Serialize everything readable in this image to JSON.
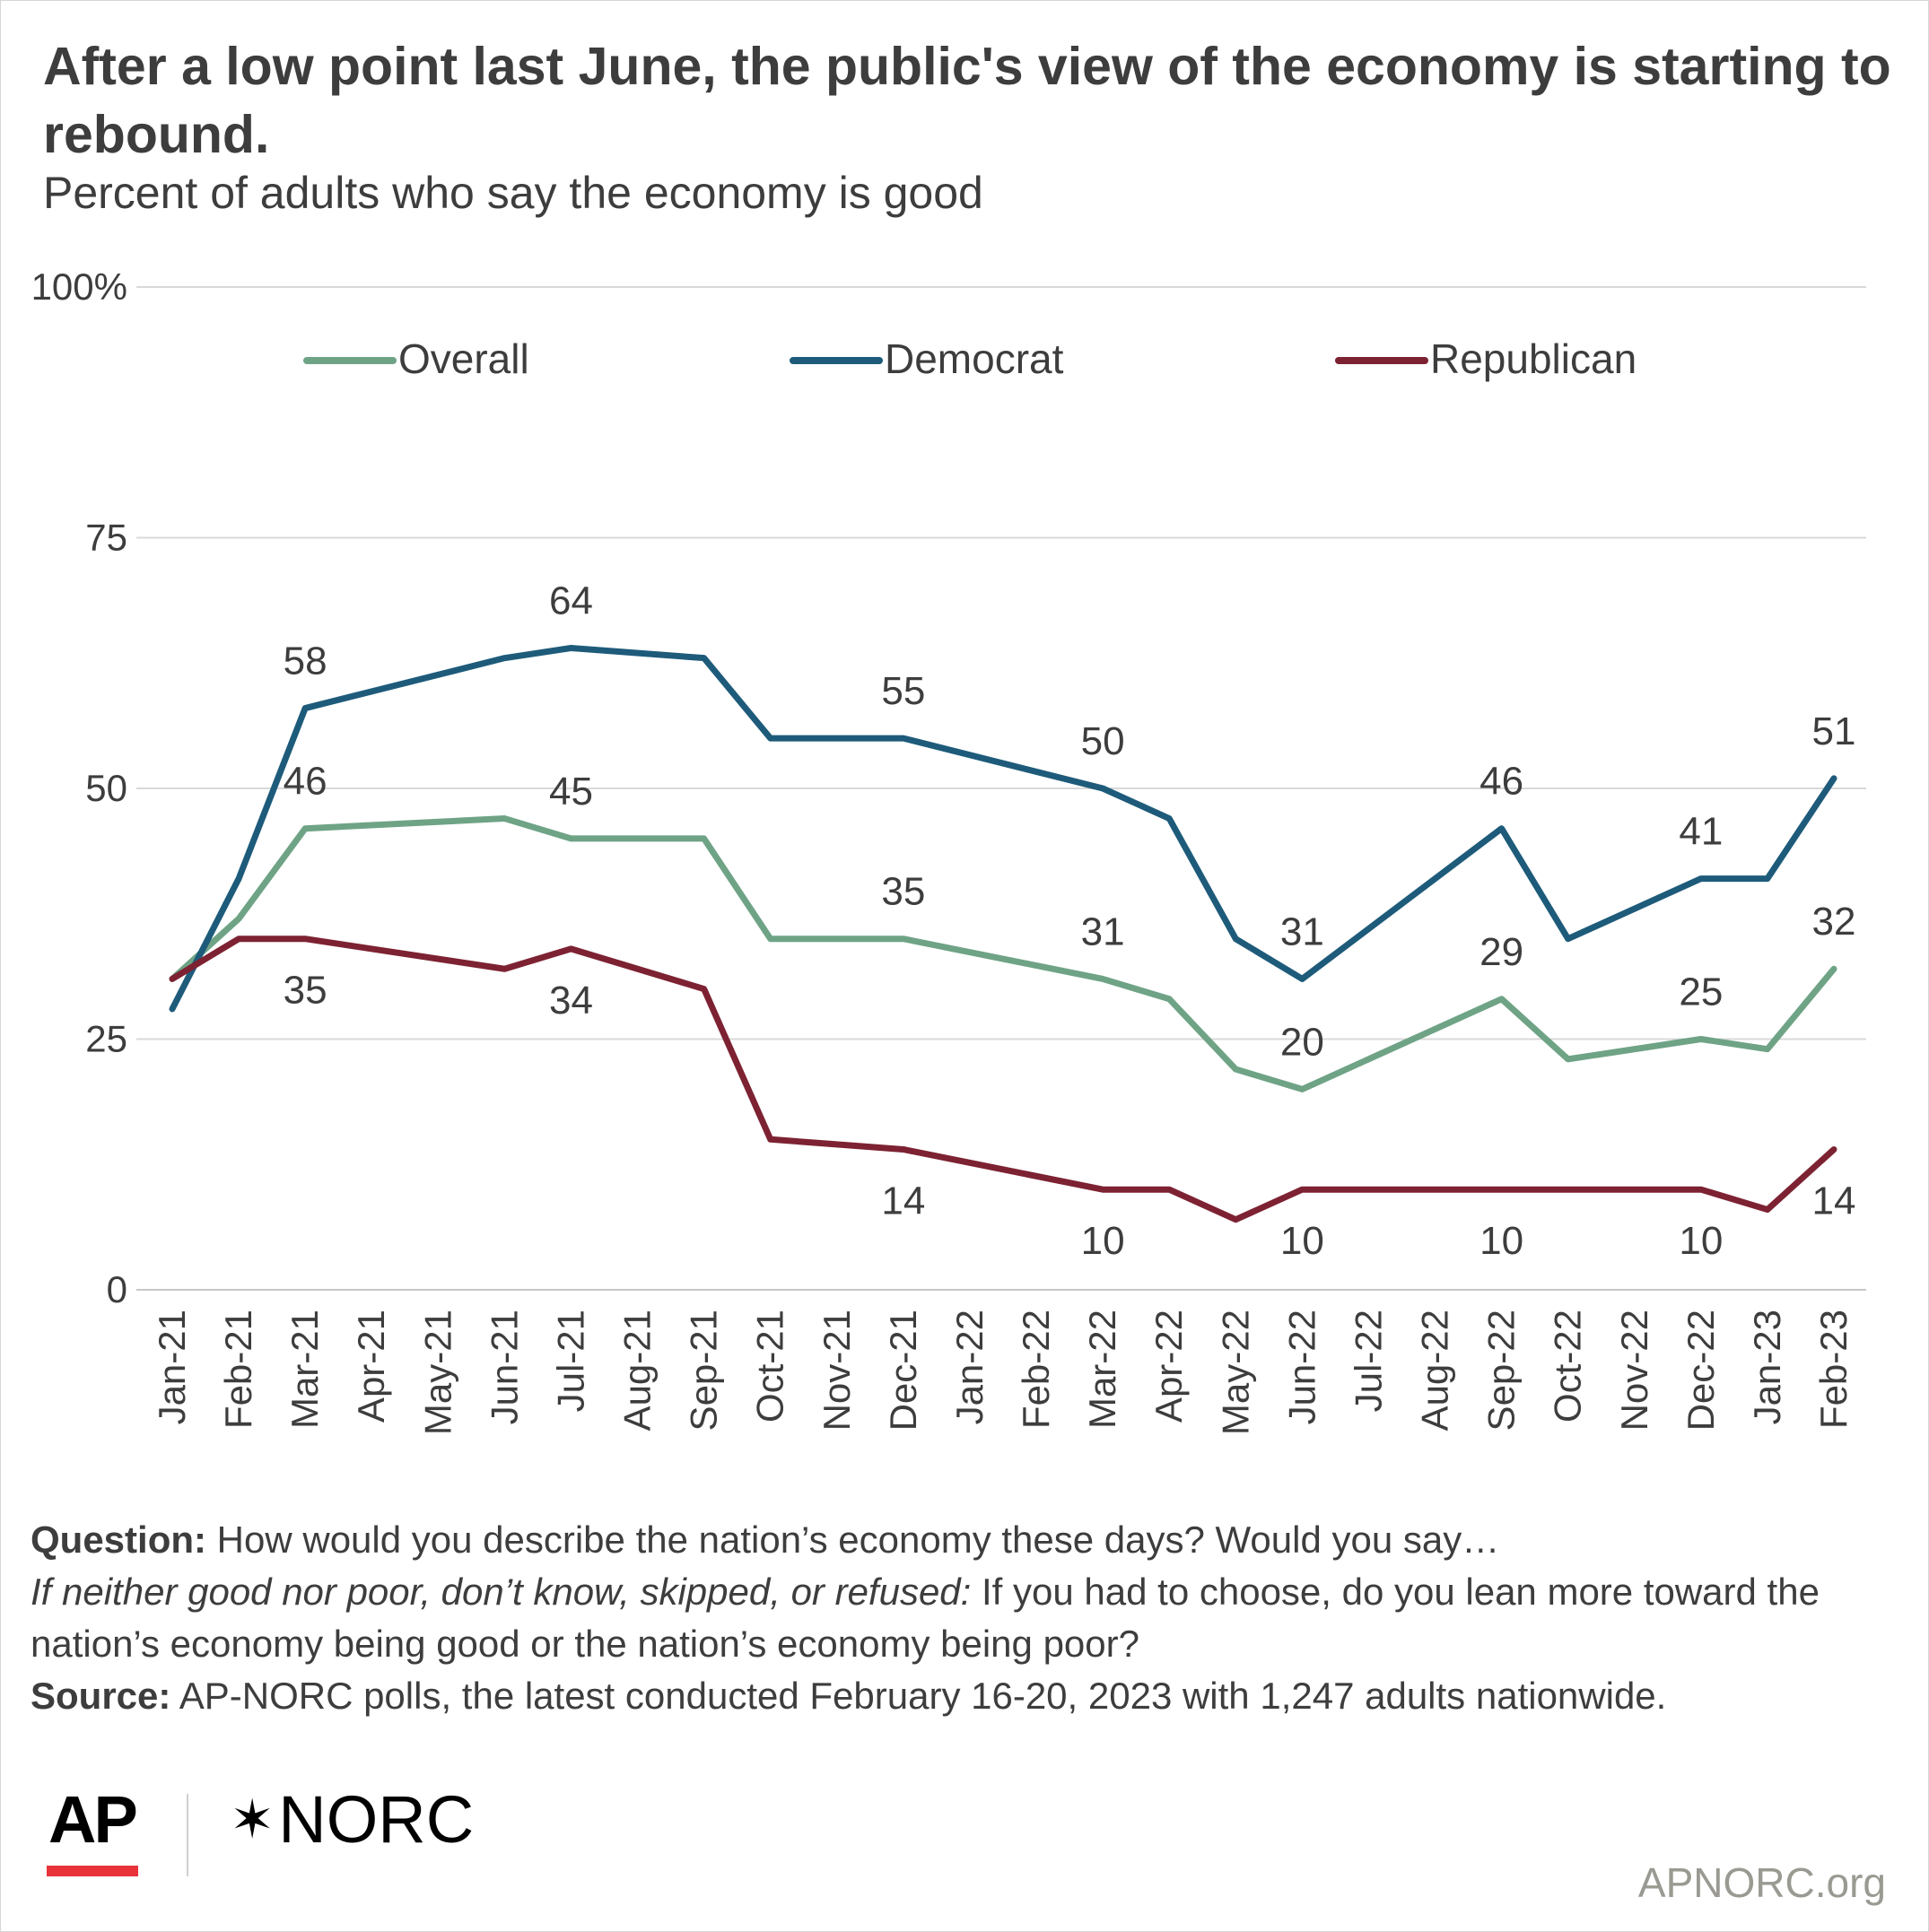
{
  "header": {
    "title": "After a low point last June, the public's view of the economy is starting to rebound.",
    "subtitle": "Percent of adults who say the economy is good"
  },
  "chart_data": {
    "type": "line",
    "title": "After a low point last June, the public's view of the economy is starting to rebound.",
    "subtitle": "Percent of adults who say the economy is good",
    "x": [
      "Jan-21",
      "Feb-21",
      "Mar-21",
      "Apr-21",
      "May-21",
      "Jun-21",
      "Jul-21",
      "Aug-21",
      "Sep-21",
      "Oct-21",
      "Nov-21",
      "Dec-21",
      "Jan-22",
      "Feb-22",
      "Mar-22",
      "Apr-22",
      "May-22",
      "Jun-22",
      "Jul-22",
      "Aug-22",
      "Sep-22",
      "Oct-22",
      "Nov-22",
      "Dec-22",
      "Jan-23",
      "Feb-23"
    ],
    "ylim": [
      0,
      100
    ],
    "y_ticks": [
      "0",
      "25",
      "50",
      "75",
      "100%"
    ],
    "y_tick_values": [
      0,
      25,
      50,
      75,
      100
    ],
    "grid": true,
    "legend_position": "top",
    "series": [
      {
        "name": "Overall",
        "color": "#6fa386",
        "values": [
          31,
          37,
          46,
          null,
          null,
          47,
          45,
          null,
          45,
          35,
          null,
          35,
          null,
          null,
          31,
          29,
          22,
          20,
          null,
          null,
          29,
          23,
          null,
          25,
          24,
          32
        ],
        "labels": [
          {
            "x": "Mar-21",
            "text": "46",
            "pos": "above"
          },
          {
            "x": "Jul-21",
            "text": "45",
            "pos": "above"
          },
          {
            "x": "Dec-21",
            "text": "35",
            "pos": "above"
          },
          {
            "x": "Mar-22",
            "text": "31",
            "pos": "above"
          },
          {
            "x": "Jun-22",
            "text": "20",
            "pos": "above"
          },
          {
            "x": "Sep-22",
            "text": "29",
            "pos": "above"
          },
          {
            "x": "Dec-22",
            "text": "25",
            "pos": "above"
          },
          {
            "x": "Feb-23",
            "text": "32",
            "pos": "above"
          }
        ]
      },
      {
        "name": "Democrat",
        "color": "#1e5b7a",
        "values": [
          28,
          41,
          58,
          null,
          null,
          63,
          64,
          null,
          63,
          55,
          null,
          55,
          null,
          null,
          50,
          47,
          35,
          31,
          null,
          null,
          46,
          35,
          null,
          41,
          41,
          51
        ],
        "labels": [
          {
            "x": "Mar-21",
            "text": "58",
            "pos": "above"
          },
          {
            "x": "Jul-21",
            "text": "64",
            "pos": "above"
          },
          {
            "x": "Dec-21",
            "text": "55",
            "pos": "above"
          },
          {
            "x": "Mar-22",
            "text": "50",
            "pos": "above"
          },
          {
            "x": "Jun-22",
            "text": "31",
            "pos": "above"
          },
          {
            "x": "Sep-22",
            "text": "46",
            "pos": "above"
          },
          {
            "x": "Dec-22",
            "text": "41",
            "pos": "above"
          },
          {
            "x": "Feb-23",
            "text": "51",
            "pos": "above"
          }
        ]
      },
      {
        "name": "Republican",
        "color": "#7d2232",
        "values": [
          31,
          35,
          35,
          null,
          null,
          32,
          34,
          null,
          30,
          15,
          null,
          14,
          null,
          null,
          10,
          10,
          7,
          10,
          null,
          null,
          10,
          10,
          null,
          10,
          8,
          14
        ],
        "labels": [
          {
            "x": "Mar-21",
            "text": "35",
            "pos": "below"
          },
          {
            "x": "Jul-21",
            "text": "34",
            "pos": "below"
          },
          {
            "x": "Dec-21",
            "text": "14",
            "pos": "below"
          },
          {
            "x": "Mar-22",
            "text": "10",
            "pos": "below"
          },
          {
            "x": "Jun-22",
            "text": "10",
            "pos": "below"
          },
          {
            "x": "Sep-22",
            "text": "10",
            "pos": "below"
          },
          {
            "x": "Dec-22",
            "text": "10",
            "pos": "below"
          },
          {
            "x": "Feb-23",
            "text": "14",
            "pos": "below"
          }
        ]
      }
    ]
  },
  "notes": {
    "question_label": "Question:",
    "question_text": " How would you describe the nation’s economy these days? Would you say…",
    "followup_italic": "If neither good nor poor, don’t know, skipped, or refused:",
    "followup_text": " If you had to choose, do you lean more toward the nation’s economy being good or the nation’s economy being poor?",
    "source_label": "Source:",
    "source_text": " AP-NORC polls, the latest conducted February 16-20, 2023 with 1,247 adults nationwide."
  },
  "footer": {
    "ap_logo": "AP",
    "norc_logo": "NORC",
    "norc_mark": "✶",
    "site": "APNORC.org"
  },
  "colors": {
    "grid": "#d9d9d9",
    "axis": "#c8c8c8",
    "text": "#3d3d3d",
    "ap_red": "#e8333a"
  }
}
